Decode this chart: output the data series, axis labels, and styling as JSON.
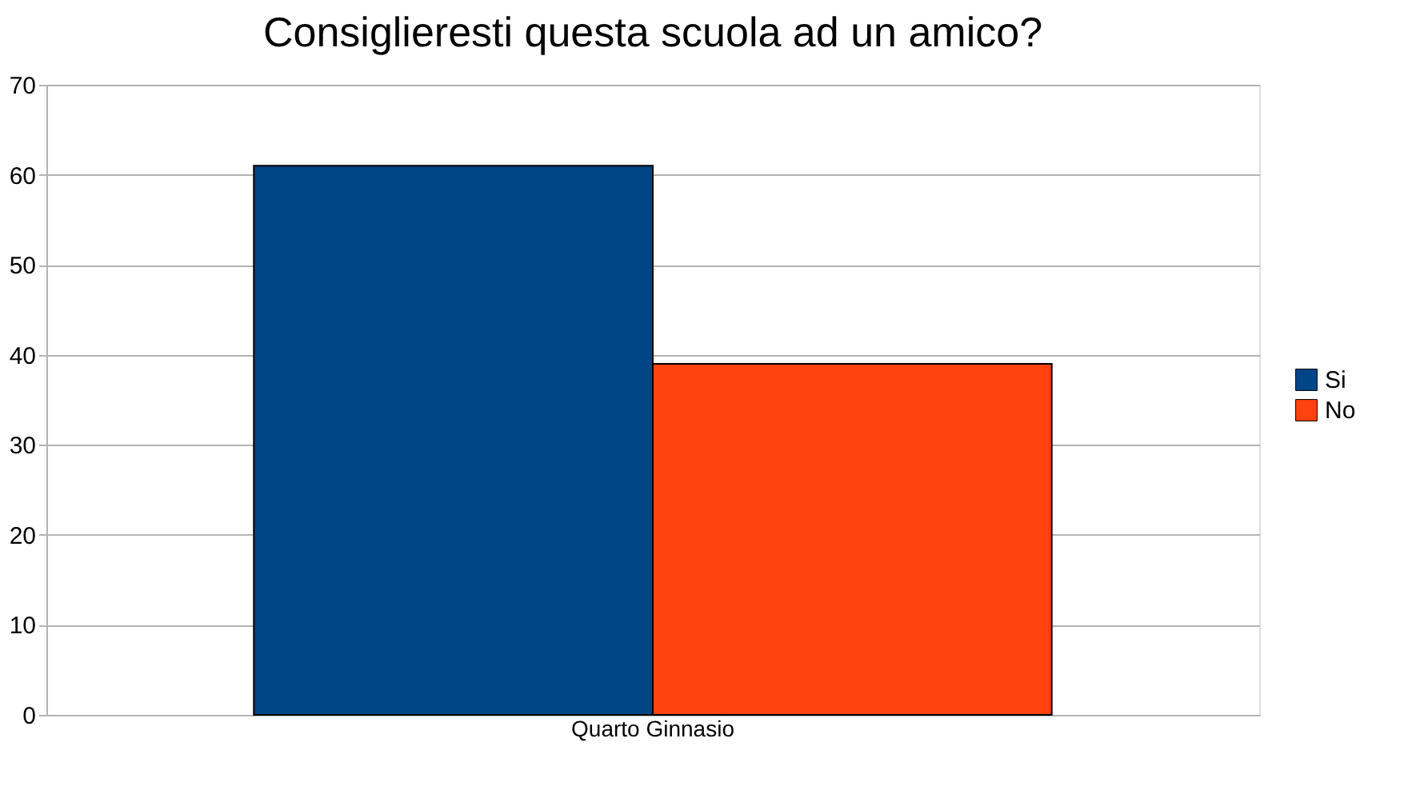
{
  "chart_data": {
    "type": "bar",
    "title": "Consiglieresti questa scuola ad un amico?",
    "categories": [
      "Quarto Ginnasio"
    ],
    "series": [
      {
        "name": "Si",
        "color": "#004586",
        "values": [
          61
        ]
      },
      {
        "name": "No",
        "color": "#ff420e",
        "values": [
          39
        ]
      }
    ],
    "ylim": [
      0,
      70
    ],
    "yticks": [
      0,
      10,
      20,
      30,
      40,
      50,
      60,
      70
    ],
    "grid": "y",
    "legend": "right"
  }
}
